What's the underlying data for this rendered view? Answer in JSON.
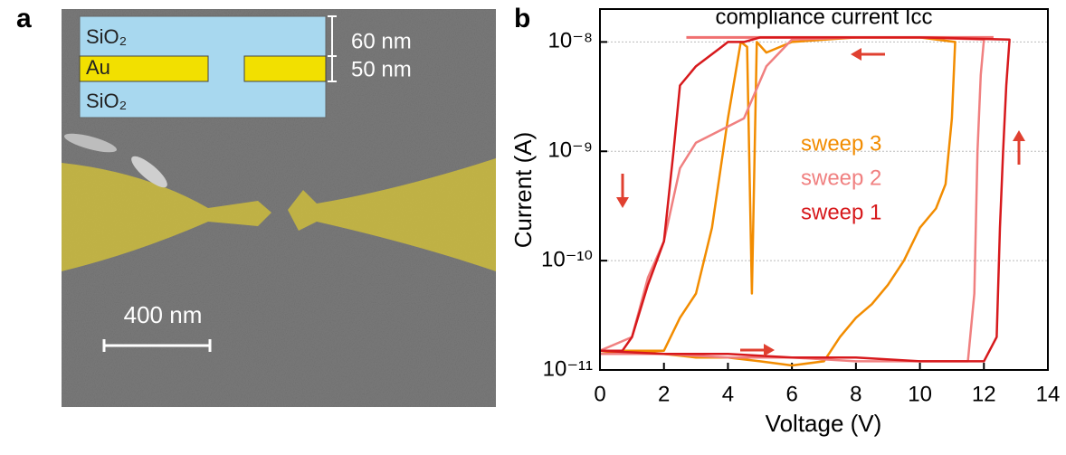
{
  "panel_a": {
    "label": "a",
    "inset": {
      "top_layer": "SiO₂",
      "middle_layer": "Au",
      "bottom_layer": "SiO₂",
      "top_thickness": "60 nm",
      "middle_thickness": "50 nm"
    },
    "scale_bar": "400 nm"
  },
  "chart_data": {
    "type": "line",
    "panel_label": "b",
    "x_label": "Voltage (V)",
    "y_label": "Current (A)",
    "xlim": [
      0,
      14
    ],
    "xticks": [
      0,
      2,
      4,
      6,
      8,
      10,
      12,
      14
    ],
    "ylim": [
      1e-11,
      2e-08
    ],
    "log_y": true,
    "grid": true,
    "yticks": [
      {
        "value": 1e-11,
        "label": "10⁻¹¹"
      },
      {
        "value": 1e-10,
        "label": "10⁻¹⁰"
      },
      {
        "value": 1e-09,
        "label": "10⁻⁹"
      },
      {
        "value": 1e-08,
        "label": "10⁻⁸"
      }
    ],
    "annotation": {
      "label": "compliance current Icc",
      "value": 1.1e-08,
      "x": [
        2.7,
        12.3
      ],
      "color": "#f07070"
    },
    "series": [
      {
        "name": "sweep 3",
        "color": "#f28c00",
        "x": [
          0,
          1,
          2,
          3,
          4,
          5,
          6,
          7,
          7.5,
          8,
          8.5,
          9,
          9.5,
          10,
          10.5,
          10.8,
          11,
          11.1,
          10,
          8,
          6,
          5.2,
          4.9,
          4.75,
          4.6,
          4.4,
          4,
          3.5,
          3,
          2.5,
          2,
          1,
          0
        ],
        "values": [
          1.4e-11,
          1.5e-11,
          1.4e-11,
          1.3e-11,
          1.3e-11,
          1.2e-11,
          1.1e-11,
          1.2e-11,
          2e-11,
          3e-11,
          4e-11,
          6e-11,
          1e-10,
          2e-10,
          3e-10,
          5e-10,
          2e-09,
          1e-08,
          1.1e-08,
          1.1e-08,
          1e-08,
          8e-09,
          1e-08,
          5e-11,
          9e-09,
          1e-08,
          2e-09,
          2e-10,
          5e-11,
          3e-11,
          1.5e-11,
          1.5e-11,
          1.5e-11
        ]
      },
      {
        "name": "sweep 2",
        "color": "#f08080",
        "x": [
          0,
          2,
          4,
          6,
          8,
          10,
          11.5,
          11.7,
          11.8,
          11.9,
          12,
          10,
          8,
          6,
          5.2,
          4.5,
          3,
          2.5,
          2,
          1.5,
          1,
          0
        ],
        "values": [
          1.4e-11,
          1.4e-11,
          1.3e-11,
          1.3e-11,
          1.2e-11,
          1.2e-11,
          1.2e-11,
          5e-11,
          1e-09,
          5e-09,
          1.05e-08,
          1.1e-08,
          1.1e-08,
          1.05e-08,
          6e-09,
          2e-09,
          1.2e-09,
          7e-10,
          1.5e-10,
          7e-11,
          2e-11,
          1.5e-11
        ]
      },
      {
        "name": "sweep 1",
        "color": "#d7191c",
        "x": [
          0,
          2,
          4,
          6,
          8,
          10,
          12,
          12.4,
          12.5,
          12.6,
          12.7,
          12.8,
          10,
          8,
          6,
          5,
          4.5,
          4,
          3.8,
          3,
          2.5,
          2.3,
          2,
          1.5,
          1,
          0.7,
          0
        ],
        "values": [
          1.5e-11,
          1.4e-11,
          1.4e-11,
          1.3e-11,
          1.3e-11,
          1.2e-11,
          1.2e-11,
          2e-11,
          2e-10,
          1e-09,
          4e-09,
          1.05e-08,
          1.1e-08,
          1.1e-08,
          1.1e-08,
          1.1e-08,
          1e-08,
          1e-08,
          9e-09,
          6e-09,
          4e-09,
          1e-09,
          1.5e-10,
          6e-11,
          2e-11,
          1.5e-11,
          1.5e-11
        ]
      }
    ]
  }
}
